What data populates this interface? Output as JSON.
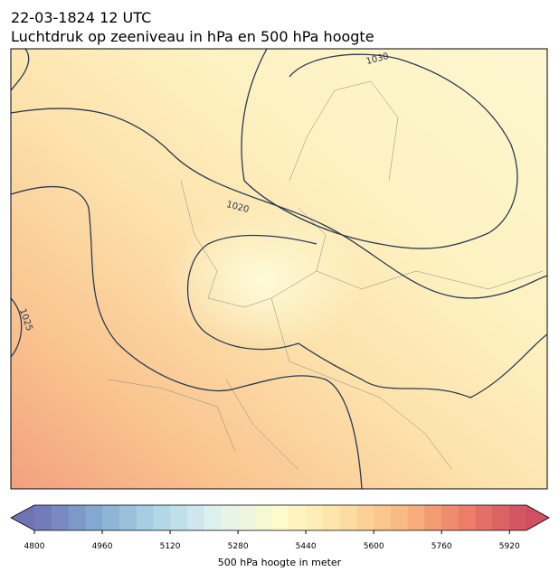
{
  "header": {
    "date": "22-03-1824 12 UTC",
    "subtitle": "Luchtdruk op zeeniveau in hPa en 500 hPa hoogte"
  },
  "map": {
    "contour_labels": [
      "1030",
      "1020",
      "1025"
    ]
  },
  "colorbar": {
    "label": "500 hPa hoogte in meter",
    "lim": [
      4800,
      5960
    ],
    "ticks": [
      4800,
      4960,
      5120,
      5280,
      5440,
      5600,
      5760,
      5920
    ]
  }
}
